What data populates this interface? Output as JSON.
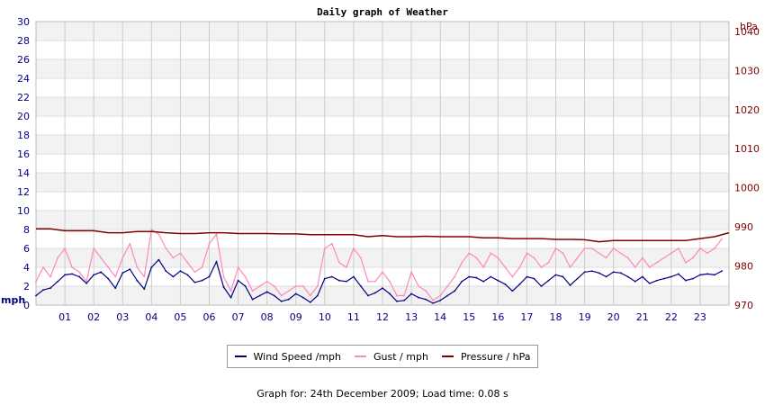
{
  "chart_data": {
    "type": "line",
    "title": "Daily graph of Weather",
    "x_ticks": [
      "01",
      "02",
      "03",
      "04",
      "05",
      "06",
      "07",
      "08",
      "09",
      "10",
      "11",
      "12",
      "13",
      "14",
      "15",
      "16",
      "17",
      "18",
      "19",
      "20",
      "21",
      "22",
      "23"
    ],
    "xlim": [
      0,
      24
    ],
    "y_left": {
      "label": "mph",
      "ylim": [
        0,
        30
      ],
      "ticks": [
        "0",
        "2",
        "4",
        "6",
        "8",
        "10",
        "12",
        "14",
        "16",
        "18",
        "20",
        "22",
        "24",
        "26",
        "28",
        "30"
      ]
    },
    "y_right": {
      "label": "hPa",
      "ylim": [
        970,
        1042.5
      ],
      "ticks": [
        "970",
        "980",
        "990",
        "1000",
        "1010",
        "1020",
        "1030",
        "1040"
      ]
    },
    "grid": true,
    "legend_position": "bottom",
    "series": [
      {
        "name": "Wind Speed /mph",
        "color": "#000080",
        "axis": "left",
        "x": [
          0,
          0.25,
          0.5,
          0.75,
          1,
          1.25,
          1.5,
          1.75,
          2,
          2.25,
          2.5,
          2.75,
          3,
          3.25,
          3.5,
          3.75,
          4,
          4.25,
          4.5,
          4.75,
          5,
          5.25,
          5.5,
          5.75,
          6,
          6.25,
          6.5,
          6.75,
          7,
          7.25,
          7.5,
          7.75,
          8,
          8.25,
          8.5,
          8.75,
          9,
          9.25,
          9.5,
          9.75,
          10,
          10.25,
          10.5,
          10.75,
          11,
          11.25,
          11.5,
          11.75,
          12,
          12.25,
          12.5,
          12.75,
          13,
          13.25,
          13.5,
          13.75,
          14,
          14.25,
          14.5,
          14.75,
          15,
          15.25,
          15.5,
          15.75,
          16,
          16.25,
          16.5,
          16.75,
          17,
          17.25,
          17.5,
          17.75,
          18,
          18.25,
          18.5,
          18.75,
          19,
          19.25,
          19.5,
          19.75,
          20,
          20.25,
          20.5,
          20.75,
          21,
          21.25,
          21.5,
          21.75,
          22,
          22.25,
          22.5,
          22.75,
          23,
          23.25,
          23.5,
          23.75
        ],
        "y": [
          1,
          1.6,
          1.8,
          2.5,
          3.2,
          3.3,
          3.0,
          2.3,
          3.2,
          3.5,
          2.8,
          1.8,
          3.4,
          3.8,
          2.6,
          1.7,
          4.0,
          4.8,
          3.6,
          3.0,
          3.6,
          3.2,
          2.4,
          2.6,
          3.0,
          4.6,
          1.9,
          0.8,
          2.6,
          2.0,
          0.6,
          1.0,
          1.4,
          1.0,
          0.4,
          0.6,
          1.2,
          0.8,
          0.3,
          1.0,
          2.8,
          3.0,
          2.6,
          2.5,
          3.0,
          2.0,
          1.0,
          1.3,
          1.8,
          1.2,
          0.4,
          0.5,
          1.2,
          0.8,
          0.6,
          0.2,
          0.5,
          1.0,
          1.5,
          2.5,
          3.0,
          2.9,
          2.5,
          3.0,
          2.6,
          2.2,
          1.5,
          2.2,
          3.0,
          2.8,
          2.0,
          2.6,
          3.2,
          3.0,
          2.1,
          2.8,
          3.5,
          3.6,
          3.4,
          3.0,
          3.5,
          3.4,
          3.0,
          2.5,
          3.0,
          2.3,
          2.6,
          2.8,
          3.0,
          3.3,
          2.6,
          2.8,
          3.2,
          3.3,
          3.2,
          3.6
        ]
      },
      {
        "name": "Gust / mph",
        "color": "#ff88bb",
        "axis": "left",
        "x": [
          0,
          0.25,
          0.5,
          0.75,
          1,
          1.25,
          1.5,
          1.75,
          2,
          2.25,
          2.5,
          2.75,
          3,
          3.25,
          3.5,
          3.75,
          4,
          4.25,
          4.5,
          4.75,
          5,
          5.25,
          5.5,
          5.75,
          6,
          6.25,
          6.5,
          6.75,
          7,
          7.25,
          7.5,
          7.75,
          8,
          8.25,
          8.5,
          8.75,
          9,
          9.25,
          9.5,
          9.75,
          10,
          10.25,
          10.5,
          10.75,
          11,
          11.25,
          11.5,
          11.75,
          12,
          12.25,
          12.5,
          12.75,
          13,
          13.25,
          13.5,
          13.75,
          14,
          14.25,
          14.5,
          14.75,
          15,
          15.25,
          15.5,
          15.75,
          16,
          16.25,
          16.5,
          16.75,
          17,
          17.25,
          17.5,
          17.75,
          18,
          18.25,
          18.5,
          18.75,
          19,
          19.25,
          19.5,
          19.75,
          20,
          20.25,
          20.5,
          20.75,
          21,
          21.25,
          21.5,
          21.75,
          22,
          22.25,
          22.5,
          22.75,
          23,
          23.25,
          23.5,
          23.75
        ],
        "y": [
          2.5,
          4,
          3,
          5,
          6,
          4,
          3.5,
          2.5,
          6,
          5,
          4,
          3,
          5,
          6.5,
          4,
          3,
          8,
          7.5,
          6,
          5,
          5.5,
          4.5,
          3.5,
          4,
          6.5,
          7.5,
          3,
          1.5,
          4,
          3,
          1.5,
          2,
          2.5,
          2,
          1,
          1.5,
          2,
          2,
          1,
          2,
          6,
          6.5,
          4.5,
          4,
          6,
          5,
          2.5,
          2.5,
          3.5,
          2.5,
          1,
          1,
          3.5,
          2,
          1.5,
          0.5,
          1,
          2,
          3,
          4.5,
          5.5,
          5,
          4,
          5.5,
          5,
          4,
          3,
          4,
          5.5,
          5,
          4,
          4.5,
          6,
          5.5,
          4,
          5,
          6,
          6,
          5.5,
          5,
          6,
          5.5,
          5,
          4,
          5,
          4,
          4.5,
          5,
          5.5,
          6,
          4.5,
          5,
          6,
          5.5,
          6,
          7
        ]
      },
      {
        "name": "Pressure / hPa",
        "color": "#800000",
        "axis": "right",
        "x": [
          0,
          0.5,
          1,
          1.5,
          2,
          2.5,
          3,
          3.5,
          4,
          4.5,
          5,
          5.5,
          6,
          6.5,
          7,
          7.5,
          8,
          8.5,
          9,
          9.5,
          10,
          10.5,
          11,
          11.5,
          12,
          12.5,
          13,
          13.5,
          14,
          14.5,
          15,
          15.5,
          16,
          16.5,
          17,
          17.5,
          18,
          18.5,
          19,
          19.5,
          20,
          20.5,
          21,
          21.5,
          22,
          22.5,
          23,
          23.5,
          24
        ],
        "y": [
          989.5,
          989.5,
          989,
          989,
          989,
          988.5,
          988.5,
          988.8,
          988.8,
          988.5,
          988.3,
          988.3,
          988.5,
          988.5,
          988.3,
          988.3,
          988.3,
          988.2,
          988.2,
          988,
          988,
          988,
          988,
          987.5,
          987.8,
          987.5,
          987.5,
          987.6,
          987.5,
          987.5,
          987.5,
          987.2,
          987.2,
          987,
          987,
          987,
          986.8,
          986.8,
          986.7,
          986.2,
          986.5,
          986.5,
          986.5,
          986.5,
          986.5,
          986.5,
          987,
          987.5,
          988.5
        ]
      }
    ]
  },
  "legend": {
    "items": [
      {
        "label": "Wind Speed /mph",
        "color": "#000080"
      },
      {
        "label": "Gust / mph",
        "color": "#ff88bb"
      },
      {
        "label": "Pressure / hPa",
        "color": "#800000"
      }
    ]
  },
  "footer": "Graph for: 24th December 2009; Load time: 0.08 s"
}
